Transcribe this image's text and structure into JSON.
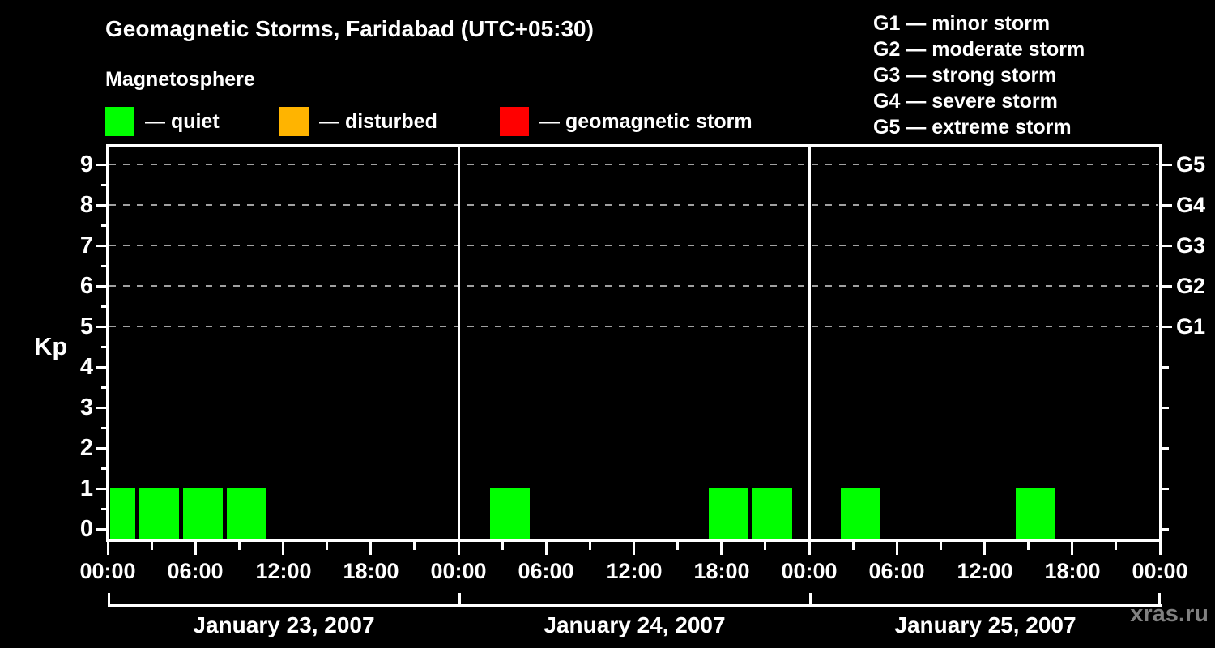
{
  "title": "Geomagnetic Storms, Faridabad (UTC+05:30)",
  "subtitle": "Magnetosphere",
  "watermark": "xras.ru",
  "status_legend": [
    {
      "name": "quiet",
      "label": "— quiet",
      "color": "#00ff00"
    },
    {
      "name": "disturbed",
      "label": "— disturbed",
      "color": "#ffb400"
    },
    {
      "name": "storm",
      "label": "— geomagnetic storm",
      "color": "#ff0000"
    }
  ],
  "storm_scale_legend": [
    "G1 — minor storm",
    "G2 — moderate storm",
    "G3 — strong storm",
    "G4 — severe storm",
    "G5 — extreme storm"
  ],
  "colors": {
    "background": "#000000",
    "axis": "#ffffff",
    "text": "#ffffff",
    "grid": "#a0a0a0",
    "watermark": "#808080",
    "quiet": "#00ff00",
    "disturbed": "#ffb400",
    "storm": "#ff0000"
  },
  "chart_data": {
    "type": "bar",
    "title": "Geomagnetic Storms, Faridabad (UTC+05:30)",
    "xlabel": "",
    "ylabel": "Kp",
    "ylim": [
      -0.3,
      9.5
    ],
    "y_ticks": [
      0,
      1,
      2,
      3,
      4,
      5,
      6,
      7,
      8,
      9
    ],
    "grid_levels": [
      5,
      6,
      7,
      8,
      9
    ],
    "grid_on": true,
    "right_axis": [
      {
        "label": "G1",
        "kp": 5
      },
      {
        "label": "G2",
        "kp": 6
      },
      {
        "label": "G3",
        "kp": 7
      },
      {
        "label": "G4",
        "kp": 8
      },
      {
        "label": "G5",
        "kp": 9
      }
    ],
    "hours_per_day": 24,
    "minor_tick_step_hours": 3,
    "major_tick_step_hours": 6,
    "end_time_label": "00:00",
    "days": [
      {
        "date": "January 23, 2007",
        "time_labels": [
          "00:00",
          "06:00",
          "12:00",
          "18:00"
        ],
        "bars": [
          {
            "start_hour": 0,
            "end_hour": 2,
            "kp": 1,
            "status": "quiet"
          },
          {
            "start_hour": 2,
            "end_hour": 5,
            "kp": 1,
            "status": "quiet"
          },
          {
            "start_hour": 5,
            "end_hour": 8,
            "kp": 1,
            "status": "quiet"
          },
          {
            "start_hour": 8,
            "end_hour": 11,
            "kp": 1,
            "status": "quiet"
          }
        ]
      },
      {
        "date": "January 24, 2007",
        "time_labels": [
          "00:00",
          "06:00",
          "12:00",
          "18:00"
        ],
        "bars": [
          {
            "start_hour": 2,
            "end_hour": 5,
            "kp": 1,
            "status": "quiet"
          },
          {
            "start_hour": 17,
            "end_hour": 20,
            "kp": 1,
            "status": "quiet"
          },
          {
            "start_hour": 20,
            "end_hour": 23,
            "kp": 1,
            "status": "quiet"
          }
        ]
      },
      {
        "date": "January 25, 2007",
        "time_labels": [
          "00:00",
          "06:00",
          "12:00",
          "18:00"
        ],
        "bars": [
          {
            "start_hour": 2,
            "end_hour": 5,
            "kp": 1,
            "status": "quiet"
          },
          {
            "start_hour": 14,
            "end_hour": 17,
            "kp": 1,
            "status": "quiet"
          }
        ]
      }
    ]
  }
}
